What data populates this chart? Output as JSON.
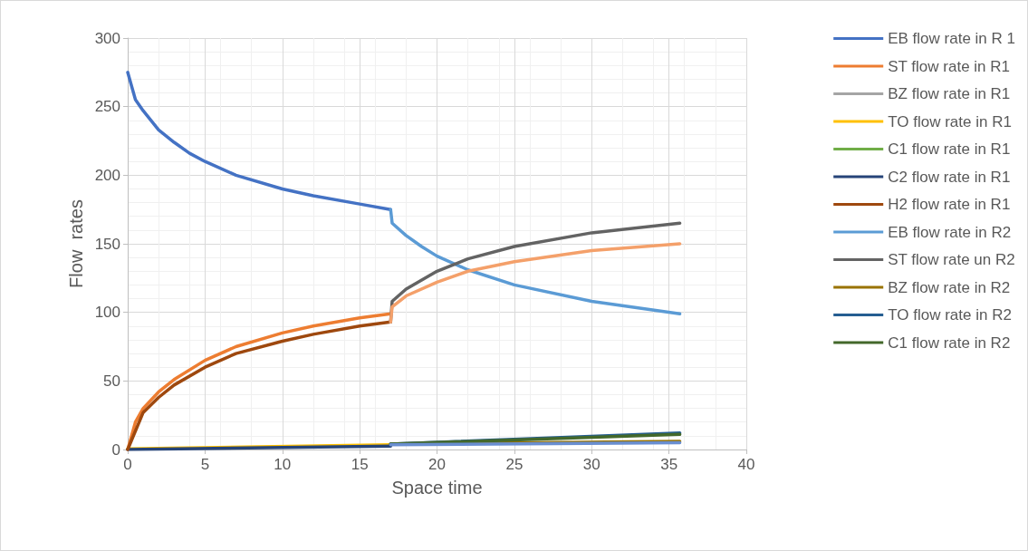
{
  "chart_data": {
    "type": "line",
    "xlabel": "Space time",
    "ylabel": "Flow  rates",
    "xlim": [
      0,
      40
    ],
    "xticks": [
      0,
      5,
      10,
      15,
      20,
      25,
      30,
      35,
      40
    ],
    "ylim": [
      0,
      300
    ],
    "yticks": [
      0,
      50,
      100,
      150,
      200,
      250,
      300
    ],
    "grid": true,
    "legend": "right",
    "marker": "none",
    "line_style": "solid",
    "series": [
      {
        "name": "EB flow rate in R 1",
        "color": "#4472c4",
        "x": [
          0,
          0.5,
          1,
          2,
          3,
          4,
          5,
          7,
          10,
          12,
          15,
          17
        ],
        "values": [
          275,
          255,
          247,
          233,
          224,
          216,
          210,
          200,
          190,
          185,
          179,
          175
        ]
      },
      {
        "name": "ST flow rate in R1",
        "color": "#ed7d31",
        "x": [
          0,
          0.5,
          1,
          2,
          3,
          5,
          7,
          10,
          12,
          15,
          17
        ],
        "values": [
          0,
          20,
          30,
          42,
          51,
          65,
          75,
          85,
          90,
          96,
          99
        ]
      },
      {
        "name": "BZ flow rate in R1",
        "color": "#a5a5a5"
      },
      {
        "name": "TO flow rate in R1",
        "color": "#ffc000",
        "x": [
          0,
          17
        ],
        "values": [
          0.5,
          3.5
        ]
      },
      {
        "name": "C1 flow rate in R1",
        "color": "#70ad47"
      },
      {
        "name": "C2 flow rate in R1",
        "color": "#264478",
        "x": [
          0,
          17
        ],
        "values": [
          0,
          2.5
        ]
      },
      {
        "name": "H2 flow rate in R1",
        "color": "#9e480e",
        "x": [
          0,
          1,
          2,
          3,
          5,
          7,
          10,
          12,
          15,
          17
        ],
        "values": [
          0,
          27,
          38,
          47,
          60,
          70,
          79,
          84,
          90,
          93
        ]
      },
      {
        "name": "EB flow rate in R2",
        "color": "#5b9bd5",
        "x": [
          17,
          17.1,
          18,
          19,
          20,
          22,
          25,
          30,
          35.7
        ],
        "values": [
          175,
          165,
          156,
          148,
          141,
          131,
          120,
          108,
          99
        ]
      },
      {
        "name": "ST flow rate un R2",
        "color": "#636363",
        "x": [
          17,
          17.1,
          18,
          20,
          22,
          25,
          30,
          35.7
        ],
        "values": [
          93,
          108,
          117,
          130,
          139,
          148,
          158,
          165
        ]
      },
      {
        "name": "BZ flow rate in R2",
        "color": "#997300",
        "x": [
          17,
          35.7
        ],
        "values": [
          4,
          6
        ]
      },
      {
        "name": "TO flow rate in R2",
        "color": "#255e91",
        "x": [
          17,
          35.7
        ],
        "values": [
          4,
          12
        ]
      },
      {
        "name": "C1 flow rate in R2",
        "color": "#43682b",
        "x": [
          17,
          35.7
        ],
        "values": [
          4,
          11
        ]
      },
      {
        "color": "#698ed0",
        "x": [
          17,
          35.7
        ],
        "values": [
          3.5,
          5
        ]
      },
      {
        "color": "#f4a06a",
        "x": [
          17,
          17.1,
          18,
          20,
          22,
          25,
          30,
          35.7
        ],
        "values": [
          93,
          104,
          112,
          122,
          130,
          137,
          145,
          150
        ]
      }
    ]
  }
}
